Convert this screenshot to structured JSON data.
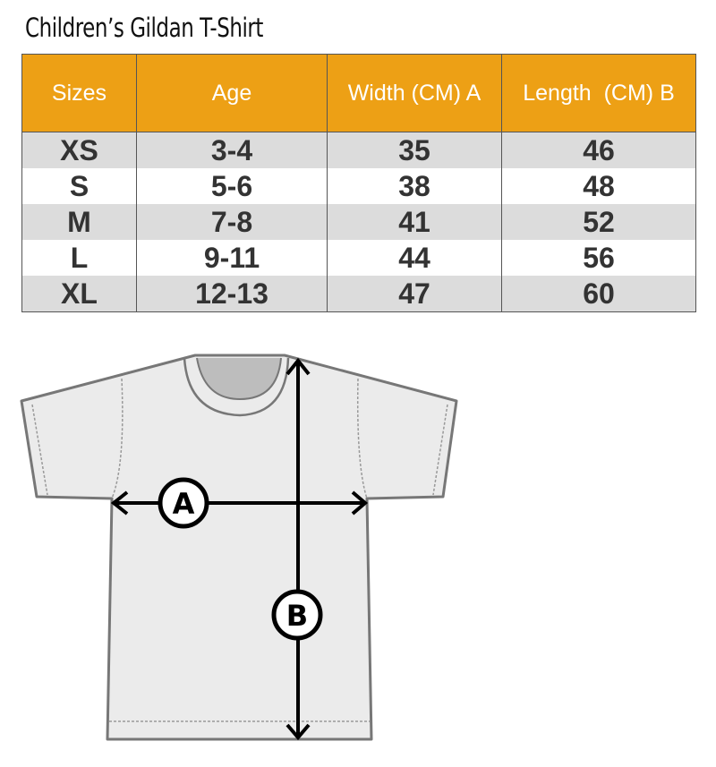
{
  "title": "Children’s Gildan T-Shirt",
  "table": {
    "headers": [
      "Sizes",
      "Age",
      "Width (CM) A",
      "Length  (CM) B"
    ],
    "rows": [
      [
        "XS",
        "3-4",
        "35",
        "46"
      ],
      [
        "S",
        "5-6",
        "38",
        "48"
      ],
      [
        "M",
        "7-8",
        "41",
        "52"
      ],
      [
        "L",
        "9-11",
        "44",
        "56"
      ],
      [
        "XL",
        "12-13",
        "47",
        "60"
      ]
    ]
  },
  "diagram": {
    "label_a": "A",
    "label_b": "B"
  },
  "colors": {
    "header": "#eda015",
    "row_alt": "#dcdcdc",
    "shirt": "#ebebeb",
    "outline": "#777777"
  }
}
